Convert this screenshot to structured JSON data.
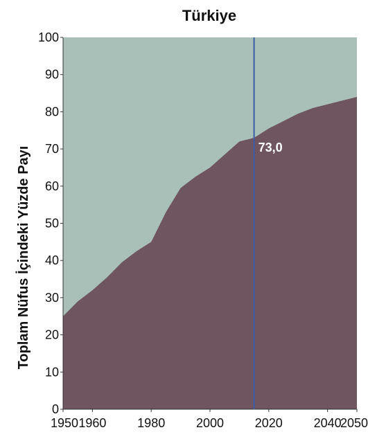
{
  "chart_data": {
    "type": "area",
    "title": "Türkiye",
    "xlabel": "",
    "ylabel": "Toplam Nüfus İçindeki Yüzde Payı",
    "xlim": [
      1950,
      2050
    ],
    "ylim": [
      0,
      100
    ],
    "x_ticks": [
      1950,
      1960,
      1980,
      2000,
      2020,
      2040,
      2050
    ],
    "y_ticks": [
      0,
      10,
      20,
      30,
      40,
      50,
      60,
      70,
      80,
      90,
      100
    ],
    "grid": false,
    "legend": "none",
    "series": [
      {
        "color": "#6e5560",
        "x": [
          1950,
          1955,
          1960,
          1965,
          1970,
          1975,
          1980,
          1985,
          1990,
          1995,
          2000,
          2005,
          2010,
          2015,
          2020,
          2025,
          2030,
          2035,
          2040,
          2045,
          2050
        ],
        "values": [
          25.0,
          29.0,
          32.0,
          35.5,
          39.5,
          42.5,
          45.0,
          53.0,
          59.5,
          62.5,
          65.0,
          68.5,
          72.0,
          73.0,
          75.5,
          77.5,
          79.5,
          81.0,
          82.0,
          83.0,
          84.0
        ]
      }
    ],
    "background_color": "#a9c0b9",
    "marker": {
      "x": 2015,
      "label": "73,0",
      "color": "#3a5ea8"
    }
  }
}
